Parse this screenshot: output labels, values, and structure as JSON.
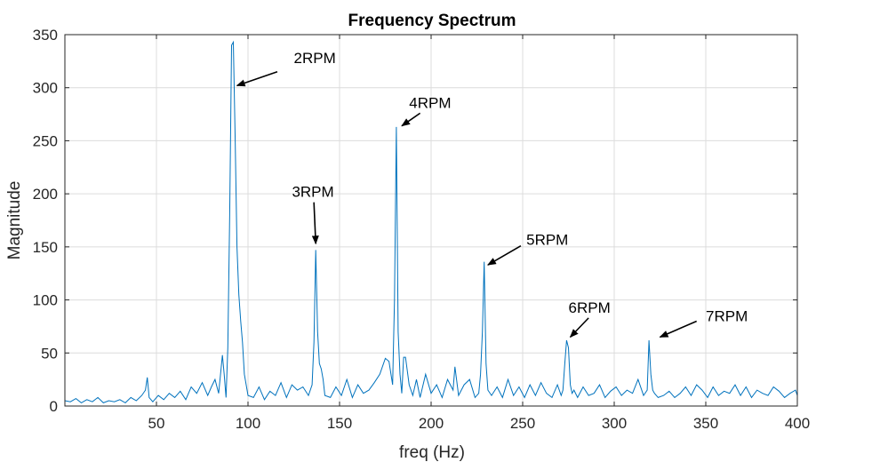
{
  "chart_data": {
    "type": "line",
    "title": "Frequency Spectrum",
    "xlabel": "freq (Hz)",
    "ylabel": "Magnitude",
    "xlim": [
      0,
      400
    ],
    "ylim": [
      0,
      350
    ],
    "xticks": [
      50,
      100,
      150,
      200,
      250,
      300,
      350,
      400
    ],
    "yticks": [
      0,
      50,
      100,
      150,
      200,
      250,
      300,
      350
    ],
    "grid": true,
    "line_color": "#0072bd",
    "series": [
      {
        "x": [
          0,
          3,
          6,
          9,
          12,
          15,
          18,
          21,
          24,
          27,
          30,
          33,
          36,
          39,
          42,
          44,
          45,
          46,
          48,
          51,
          54,
          57,
          60,
          63,
          66,
          69,
          72,
          75,
          78,
          80,
          82,
          84,
          86,
          87,
          88,
          89,
          90,
          91,
          92,
          93,
          94,
          95,
          96,
          97,
          98,
          100,
          103,
          106,
          109,
          112,
          115,
          118,
          121,
          124,
          127,
          130,
          133,
          135,
          136,
          137,
          138,
          139,
          140,
          141,
          142,
          145,
          148,
          151,
          154,
          157,
          160,
          163,
          166,
          169,
          172,
          175,
          177,
          179,
          180,
          181,
          182,
          183,
          184,
          185,
          186,
          188,
          190,
          192,
          194,
          197,
          200,
          203,
          206,
          209,
          212,
          213,
          215,
          218,
          221,
          224,
          226,
          227,
          228,
          229,
          230,
          231,
          233,
          236,
          239,
          242,
          245,
          248,
          251,
          254,
          257,
          260,
          263,
          266,
          269,
          271,
          272,
          273,
          274,
          275,
          276,
          277,
          278,
          280,
          283,
          286,
          289,
          292,
          295,
          298,
          301,
          304,
          307,
          310,
          313,
          316,
          318,
          319,
          320,
          321,
          322,
          324,
          327,
          330,
          333,
          336,
          339,
          342,
          345,
          348,
          351,
          354,
          357,
          360,
          363,
          366,
          369,
          372,
          375,
          378,
          381,
          384,
          387,
          390,
          393,
          396,
          399,
          400
        ],
        "y": [
          5,
          4,
          7,
          3,
          6,
          4,
          8,
          3,
          5,
          4,
          6,
          3,
          8,
          5,
          10,
          15,
          27,
          8,
          4,
          10,
          6,
          12,
          8,
          14,
          6,
          18,
          12,
          22,
          10,
          18,
          25,
          12,
          48,
          30,
          8,
          55,
          180,
          340,
          343,
          250,
          150,
          105,
          80,
          60,
          30,
          10,
          8,
          18,
          6,
          14,
          10,
          22,
          8,
          20,
          15,
          18,
          10,
          20,
          60,
          147,
          70,
          40,
          35,
          25,
          10,
          8,
          18,
          10,
          25,
          8,
          20,
          12,
          15,
          22,
          30,
          45,
          42,
          20,
          100,
          263,
          70,
          30,
          12,
          46,
          46,
          20,
          10,
          25,
          8,
          30,
          12,
          20,
          8,
          25,
          15,
          37,
          10,
          20,
          25,
          8,
          12,
          30,
          70,
          136,
          40,
          15,
          10,
          18,
          8,
          25,
          10,
          18,
          8,
          20,
          10,
          22,
          12,
          8,
          20,
          10,
          15,
          40,
          62,
          55,
          20,
          12,
          15,
          8,
          18,
          10,
          12,
          20,
          8,
          14,
          18,
          10,
          15,
          12,
          25,
          10,
          15,
          62,
          30,
          15,
          12,
          8,
          10,
          14,
          8,
          12,
          18,
          10,
          20,
          15,
          8,
          18,
          10,
          14,
          12,
          20,
          10,
          18,
          8,
          15,
          12,
          10,
          18,
          14,
          8,
          12,
          15,
          10
        ]
      }
    ],
    "annotations": [
      {
        "text": "2RPM",
        "label_x": 125,
        "label_y": 323,
        "arrow_from": [
          116,
          315
        ],
        "arrow_to": [
          94,
          302
        ]
      },
      {
        "text": "3RPM",
        "label_x": 124,
        "label_y": 197,
        "arrow_from": [
          136,
          192
        ],
        "arrow_to": [
          137,
          153
        ]
      },
      {
        "text": "4RPM",
        "label_x": 188,
        "label_y": 281,
        "arrow_from": [
          194,
          276
        ],
        "arrow_to": [
          184,
          264
        ]
      },
      {
        "text": "5RPM",
        "label_x": 252,
        "label_y": 152,
        "arrow_from": [
          249,
          151
        ],
        "arrow_to": [
          231,
          133
        ]
      },
      {
        "text": "6RPM",
        "label_x": 275,
        "label_y": 88,
        "arrow_from": [
          286,
          83
        ],
        "arrow_to": [
          276,
          65
        ]
      },
      {
        "text": "7RPM",
        "label_x": 350,
        "label_y": 80,
        "arrow_from": [
          345,
          80
        ],
        "arrow_to": [
          325,
          65
        ]
      }
    ]
  }
}
